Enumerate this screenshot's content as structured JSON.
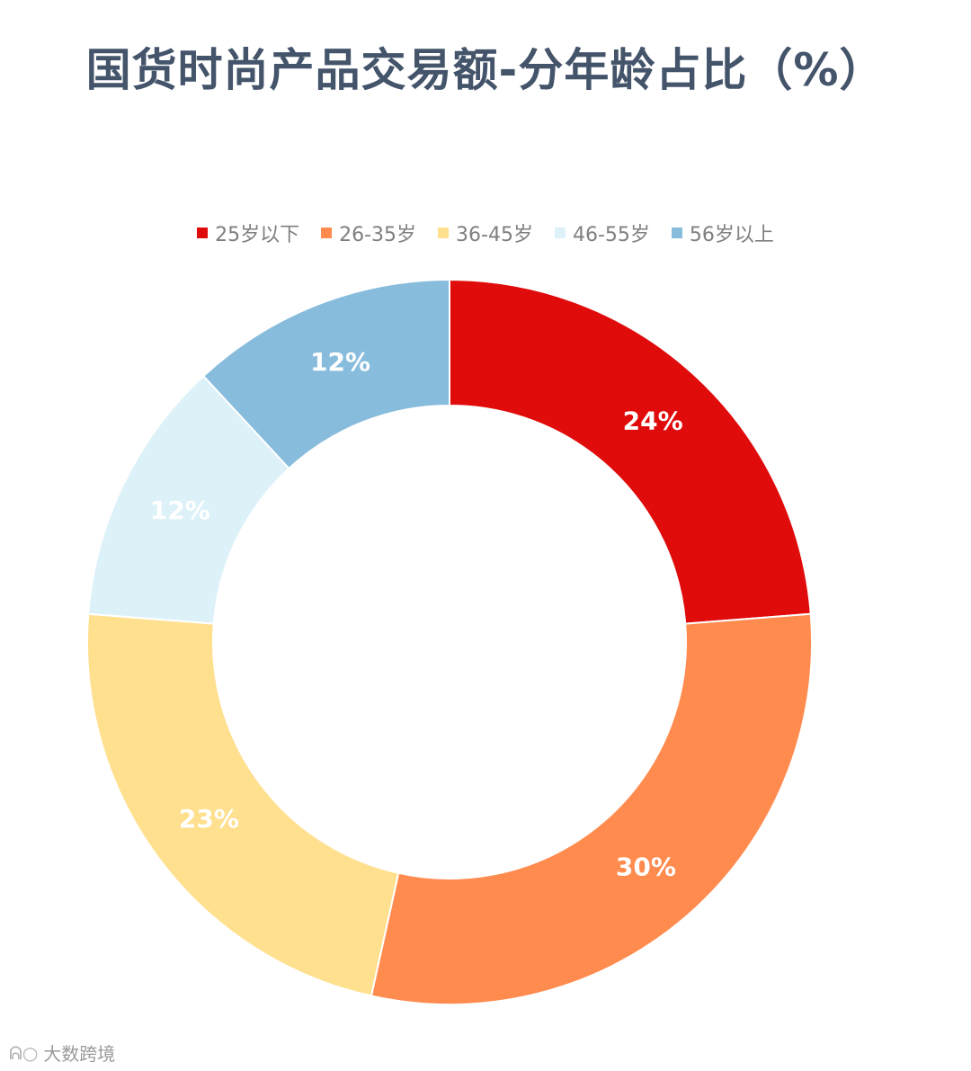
{
  "chart_data": {
    "type": "pie",
    "title": "国货时尚产品交易额-分年龄占比（%）",
    "categories": [
      "25岁以下",
      "26-35岁",
      "36-45岁",
      "46-55岁",
      "56岁以上"
    ],
    "values": [
      24,
      30,
      23,
      12,
      12
    ],
    "data_labels": [
      "24%",
      "30%",
      "23%",
      "12%",
      "12%"
    ],
    "colors": [
      "#e00b0b",
      "#ff8b4f",
      "#ffe08f",
      "#dcf1f8",
      "#88bcdc"
    ],
    "label_colors": [
      "#ffffff",
      "#ffffff",
      "#ffffff",
      "#ffffff",
      "#ffffff"
    ],
    "legend_position": "top",
    "style": "donut"
  },
  "watermark": {
    "text": "大数跨境",
    "icon": "logo-icon"
  }
}
